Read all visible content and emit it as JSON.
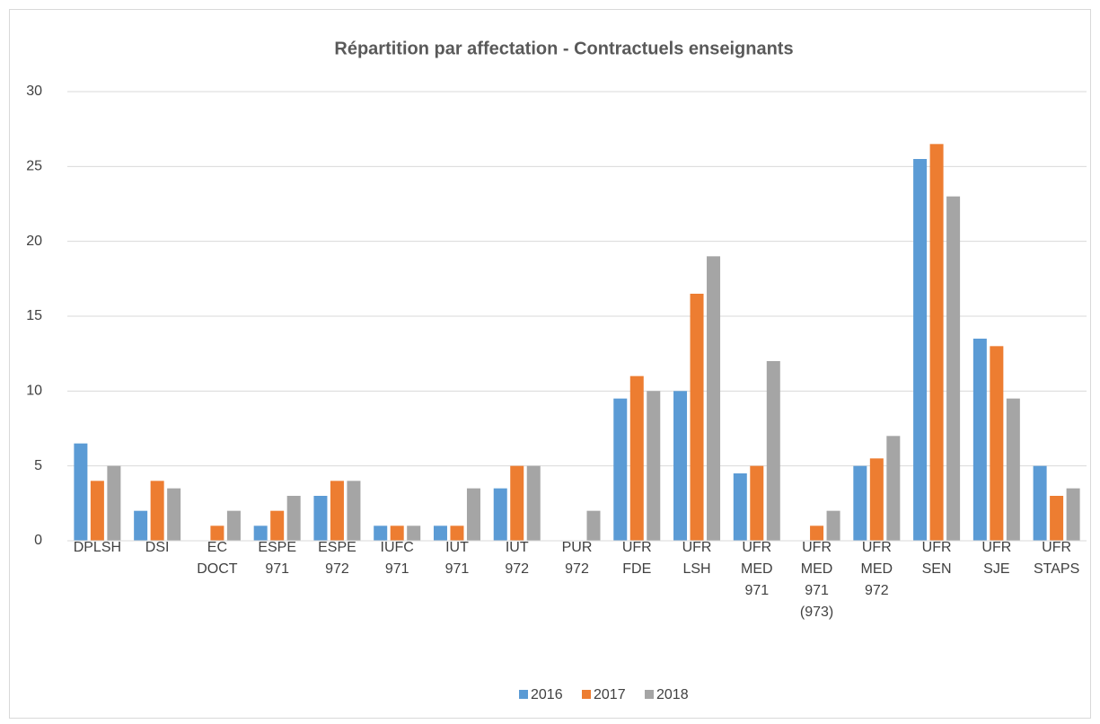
{
  "chart_data": {
    "type": "bar",
    "title": "Répartition par affectation - Contractuels enseignants",
    "categories": [
      "DPLSH",
      "DSI",
      "EC DOCT",
      "ESPE 971",
      "ESPE 972",
      "IUFC 971",
      "IUT 971",
      "IUT 972",
      "PUR 972",
      "UFR FDE",
      "UFR LSH",
      "UFR MED 971",
      "UFR MED 971 (973)",
      "UFR MED 972",
      "UFR SEN",
      "UFR SJE",
      "UFR STAPS"
    ],
    "series": [
      {
        "name": "2016",
        "color": "#5b9bd5",
        "values": [
          6.5,
          2,
          0,
          1,
          3,
          1,
          1,
          3.5,
          0,
          9.5,
          10,
          4.5,
          0,
          5,
          25.5,
          13.5,
          5
        ]
      },
      {
        "name": "2017",
        "color": "#ed7d31",
        "values": [
          4,
          4,
          1,
          2,
          4,
          1,
          1,
          5,
          0,
          11,
          16.5,
          5,
          1,
          5.5,
          26.5,
          13,
          3
        ]
      },
      {
        "name": "2018",
        "color": "#a5a5a5",
        "values": [
          5,
          3.5,
          2,
          3,
          4,
          1,
          3.5,
          5,
          2,
          10,
          19,
          12,
          2,
          7,
          23,
          9.5,
          3.5
        ]
      }
    ],
    "ylim": [
      0,
      30
    ],
    "yticks": [
      0,
      5,
      10,
      15,
      20,
      25,
      30
    ],
    "grid": true,
    "legend": "bottom"
  }
}
